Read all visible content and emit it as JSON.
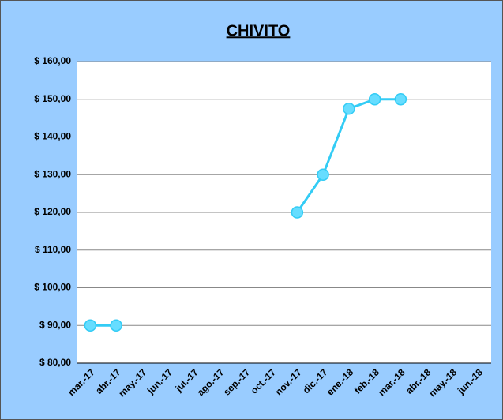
{
  "chart_data": {
    "type": "line",
    "title": "CHIVITO",
    "categories": [
      "mar.-17",
      "abr.-17",
      "may.-17",
      "jun.-17",
      "jul.-17",
      "ago.-17",
      "sep.-17",
      "oct.-17",
      "nov.-17",
      "dic.-17",
      "ene.-18",
      "feb.-18",
      "mar.-18",
      "abr.-18",
      "may.-18",
      "jun.-18"
    ],
    "values": [
      90,
      90,
      null,
      null,
      null,
      null,
      null,
      null,
      120,
      130,
      147.5,
      150,
      150,
      null,
      null,
      null
    ],
    "color": "#33ccf5",
    "ylim": [
      80,
      160
    ],
    "yticks": [
      {
        "value": 80,
        "label": "$ 80,00"
      },
      {
        "value": 90,
        "label": "$ 90,00"
      },
      {
        "value": 100,
        "label": "$ 100,00"
      },
      {
        "value": 110,
        "label": "$ 110,00"
      },
      {
        "value": 120,
        "label": "$ 120,00"
      },
      {
        "value": 130,
        "label": "$ 130,00"
      },
      {
        "value": 140,
        "label": "$ 140,00"
      },
      {
        "value": 150,
        "label": "$ 150,00"
      },
      {
        "value": 160,
        "label": "$ 160,00"
      }
    ],
    "grid": true
  }
}
